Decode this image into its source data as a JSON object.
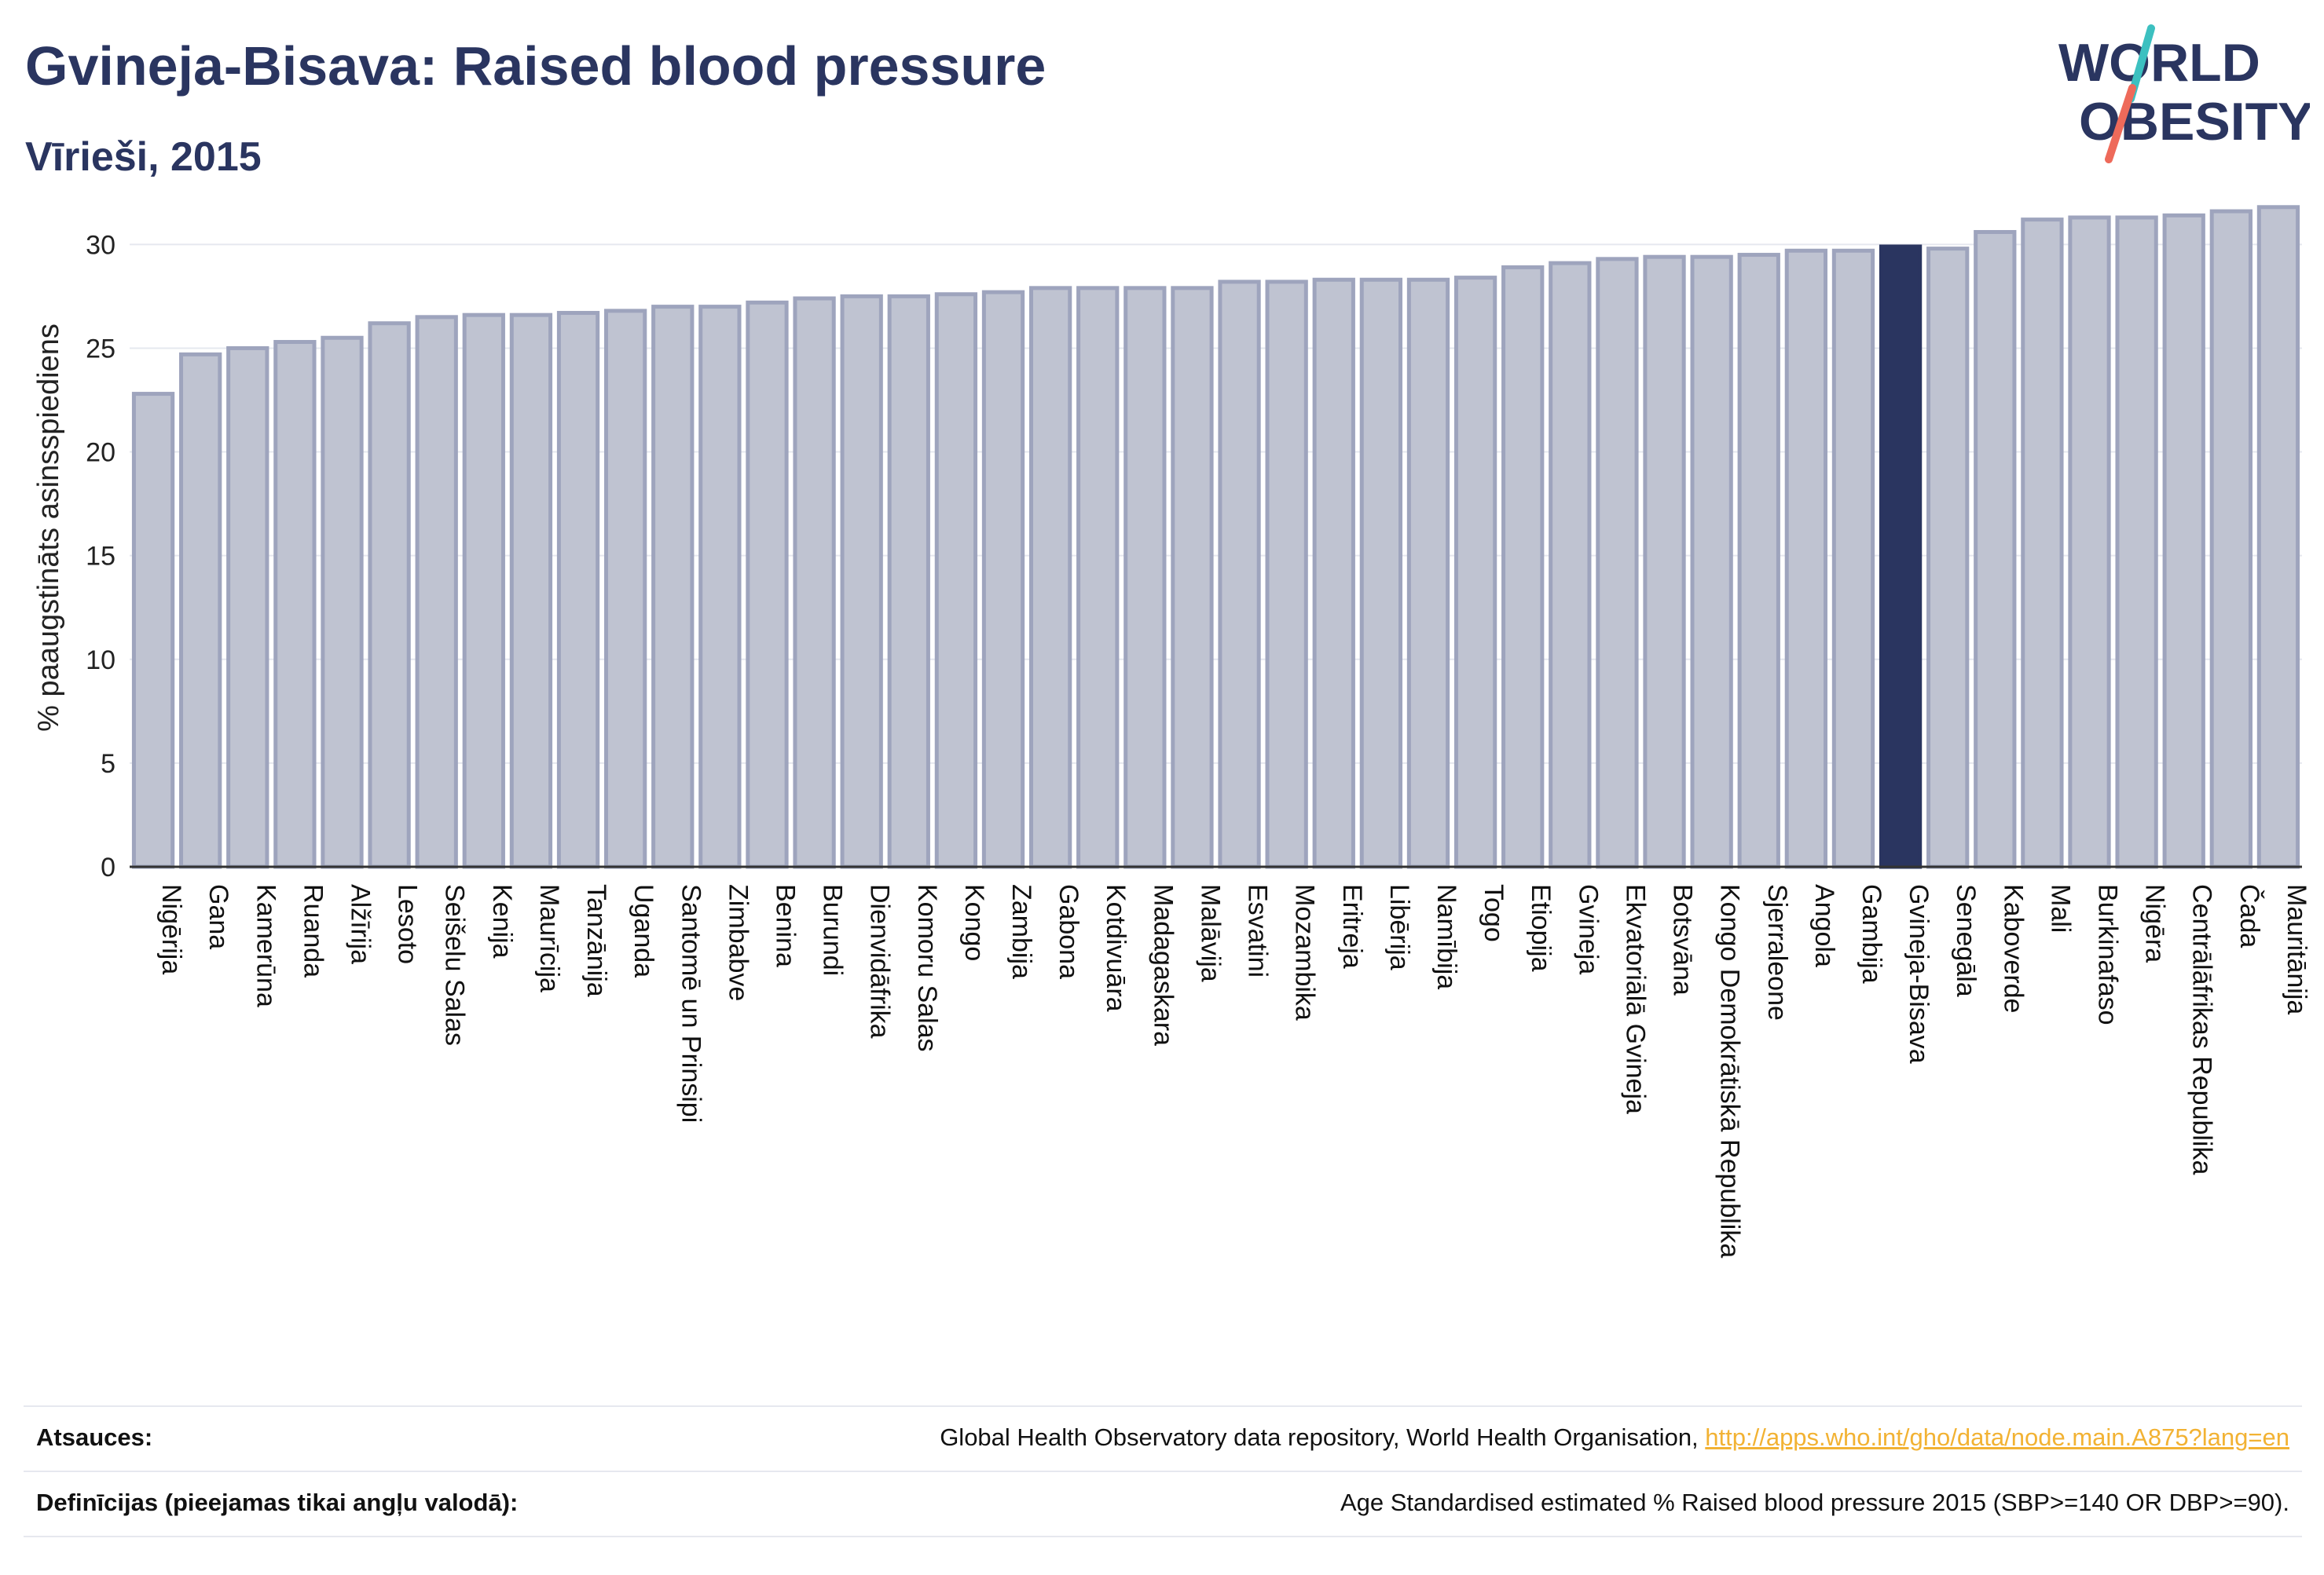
{
  "header": {
    "title": "Gvineja-Bisava: Raised blood pressure",
    "subtitle": "Vīrieši, 2015"
  },
  "logo": {
    "line1": "WORLD",
    "line2": "OBESITY",
    "icon": "world-obesity-logo"
  },
  "colors": {
    "bar": "#bfc3d1",
    "bar_stroke": "#9ea4bd",
    "highlight": "#2a3560",
    "grid": "#e6e8ef",
    "link": "#f2b233"
  },
  "chart_data": {
    "type": "bar",
    "title": "Gvineja-Bisava: Raised blood pressure",
    "subtitle": "Vīrieši, 2015",
    "xlabel": "",
    "ylabel": "% paaugstināts asinsspiediens",
    "ylim": [
      0,
      32
    ],
    "yticks": [
      0,
      5,
      10,
      15,
      20,
      25,
      30
    ],
    "grid": true,
    "highlight": "Gvineja-Bisava",
    "categories": [
      "Nigērija",
      "Gana",
      "Kamerūna",
      "Ruanda",
      "Alžīrija",
      "Lesoto",
      "Seišelu Salas",
      "Kenija",
      "Maurīcija",
      "Tanzānija",
      "Uganda",
      "Santomē un Prinsipi",
      "Zimbabve",
      "Benina",
      "Burundi",
      "Dienvidāfrika",
      "Komoru Salas",
      "Kongo",
      "Zambija",
      "Gabona",
      "Kotdivuāra",
      "Madagaskara",
      "Malāvija",
      "Esvatini",
      "Mozambika",
      "Eritreja",
      "Libērija",
      "Namībija",
      "Togo",
      "Etiopija",
      "Gvineja",
      "Ekvatoriālā Gvineja",
      "Botsvāna",
      "Kongo Demokrātiskā Republika",
      "Sjerraleone",
      "Angola",
      "Gambija",
      "Gvineja-Bisava",
      "Senegāla",
      "Kaboverde",
      "Mali",
      "Burkinafaso",
      "Nigēra",
      "Centrālāfrikas Republika",
      "Čada",
      "Mauritānija"
    ],
    "values": [
      22.8,
      24.7,
      25.0,
      25.3,
      25.5,
      26.2,
      26.5,
      26.6,
      26.6,
      26.7,
      26.8,
      27.0,
      27.0,
      27.2,
      27.4,
      27.5,
      27.5,
      27.6,
      27.7,
      27.9,
      27.9,
      27.9,
      27.9,
      28.2,
      28.2,
      28.3,
      28.3,
      28.3,
      28.4,
      28.9,
      29.1,
      29.3,
      29.4,
      29.4,
      29.5,
      29.7,
      29.7,
      29.9,
      29.8,
      30.6,
      31.2,
      31.3,
      31.3,
      31.4,
      31.6,
      31.8
    ]
  },
  "footer": {
    "sources_label": "Atsauces:",
    "sources_text": "Global Health Observatory data repository, World Health Organisation, ",
    "sources_link": "http://apps.who.int/gho/data/node.main.A875?lang=en",
    "definitions_label": "Definīcijas (pieejamas tikai angļu valodā):",
    "definitions_text": "Age Standardised estimated % Raised blood pressure 2015 (SBP>=140 OR DBP>=90)."
  }
}
